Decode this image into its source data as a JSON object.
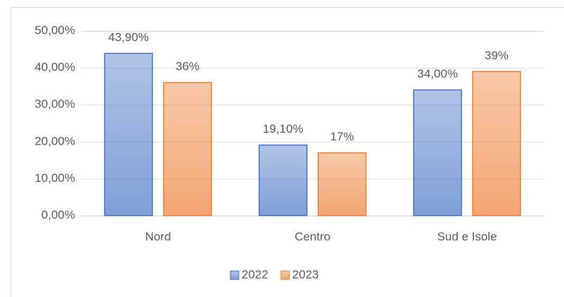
{
  "chart_data": {
    "type": "bar",
    "categories": [
      "Nord",
      "Centro",
      "Sud e Isole"
    ],
    "series": [
      {
        "name": "2022",
        "color": "#4472c4",
        "values": [
          43.9,
          19.1,
          34.0
        ],
        "value_labels": [
          "43,90%",
          "19,10%",
          "34,00%"
        ]
      },
      {
        "name": "2023",
        "color": "#ed7d31",
        "values": [
          36,
          17,
          39
        ],
        "value_labels": [
          "36%",
          "17%",
          "39%"
        ]
      }
    ],
    "ylim": [
      0,
      50
    ],
    "yticks": [
      {
        "value": 0,
        "label": "0,00%"
      },
      {
        "value": 10,
        "label": "10,00%"
      },
      {
        "value": 20,
        "label": "20,00%"
      },
      {
        "value": 30,
        "label": "30,00%"
      },
      {
        "value": 40,
        "label": "40,00%"
      },
      {
        "value": 50,
        "label": "50,00%"
      }
    ],
    "grid": true,
    "legend": "bottom"
  }
}
